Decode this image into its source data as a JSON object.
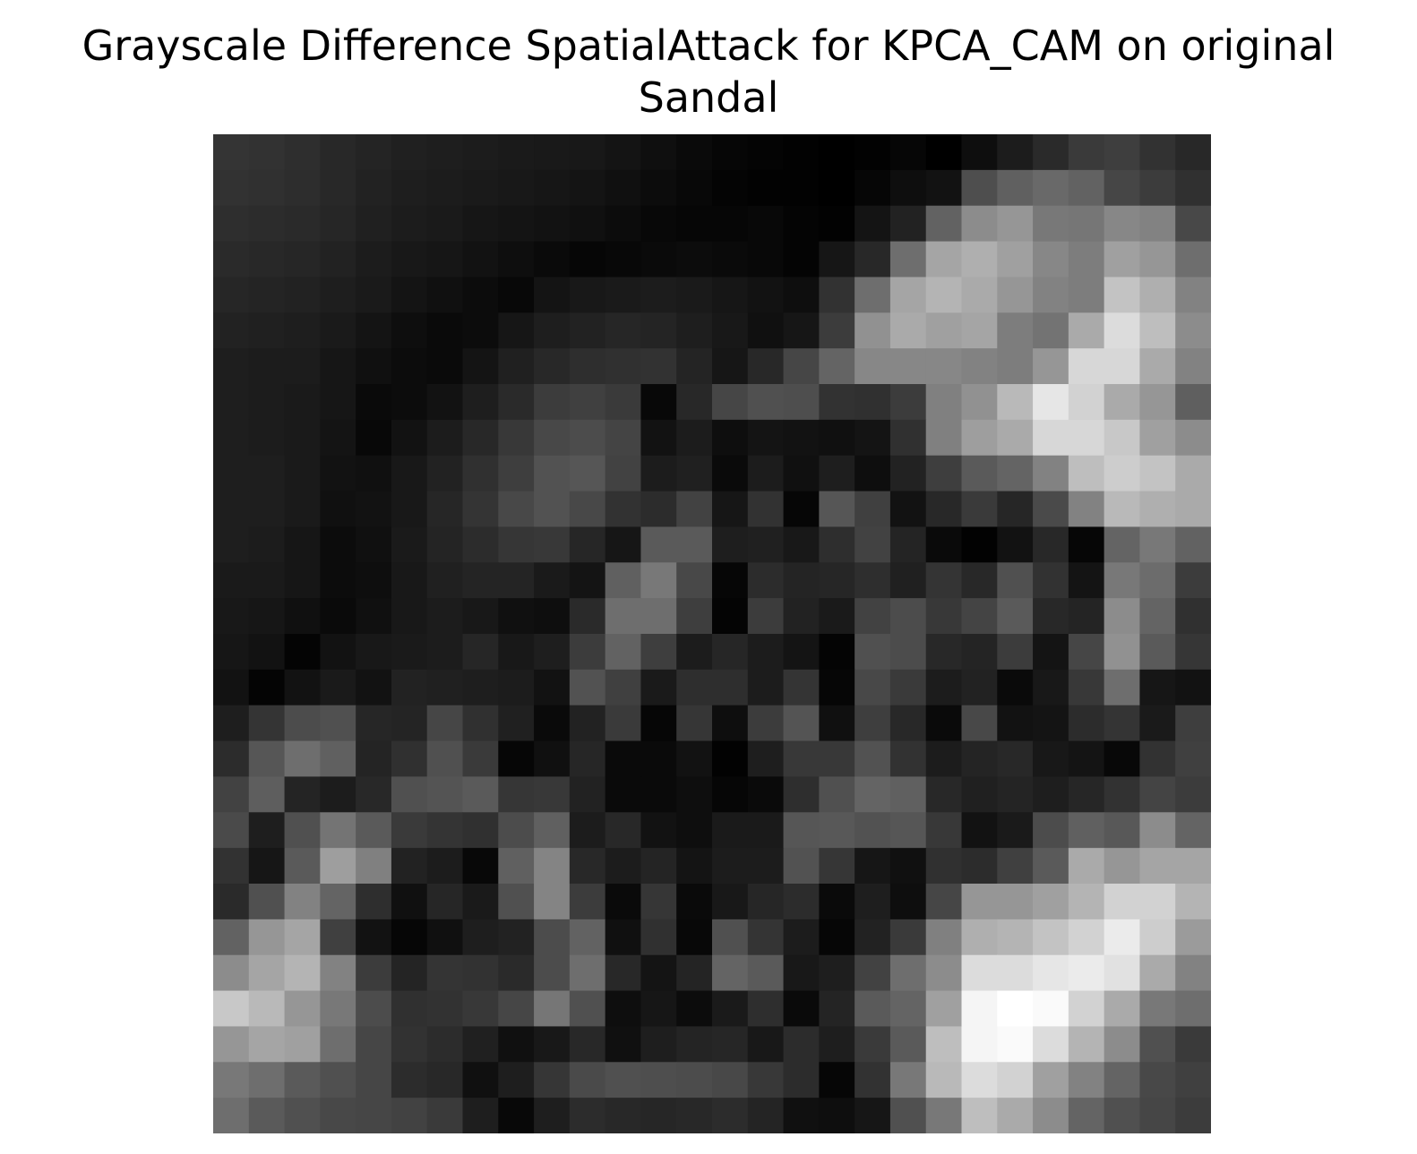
{
  "chart_data": {
    "type": "heatmap",
    "title_line1": "Grayscale Difference SpatialAttack for KPCA_CAM on original",
    "title_line2": "Sandal",
    "colormap": "gray",
    "axis_visible": false,
    "value_range": [
      0,
      255
    ],
    "rows": 28,
    "cols": 28,
    "values": [
      [
        52,
        50,
        46,
        40,
        36,
        32,
        30,
        28,
        26,
        25,
        24,
        20,
        15,
        10,
        6,
        4,
        2,
        0,
        2,
        6,
        0,
        14,
        28,
        42,
        58,
        62,
        50,
        40
      ],
      [
        50,
        48,
        45,
        40,
        34,
        30,
        28,
        26,
        24,
        22,
        20,
        16,
        12,
        8,
        4,
        2,
        2,
        0,
        6,
        14,
        18,
        78,
        96,
        105,
        98,
        70,
        60,
        48
      ],
      [
        46,
        44,
        42,
        38,
        32,
        28,
        26,
        22,
        20,
        18,
        16,
        12,
        8,
        6,
        6,
        8,
        4,
        2,
        20,
        34,
        98,
        140,
        150,
        120,
        118,
        135,
        130,
        72
      ],
      [
        42,
        40,
        38,
        34,
        28,
        24,
        22,
        18,
        14,
        10,
        6,
        8,
        10,
        12,
        10,
        8,
        4,
        22,
        40,
        110,
        165,
        175,
        160,
        135,
        125,
        160,
        150,
        110
      ],
      [
        38,
        36,
        34,
        30,
        26,
        20,
        16,
        12,
        8,
        20,
        24,
        26,
        28,
        26,
        22,
        18,
        14,
        50,
        110,
        165,
        180,
        170,
        150,
        130,
        125,
        195,
        175,
        130
      ],
      [
        34,
        32,
        30,
        26,
        20,
        14,
        10,
        12,
        22,
        30,
        34,
        38,
        36,
        30,
        24,
        16,
        22,
        60,
        145,
        170,
        160,
        165,
        125,
        115,
        170,
        220,
        190,
        140
      ],
      [
        30,
        28,
        28,
        22,
        16,
        12,
        10,
        20,
        32,
        40,
        46,
        48,
        50,
        36,
        22,
        40,
        70,
        100,
        135,
        135,
        135,
        130,
        125,
        150,
        215,
        215,
        170,
        130
      ],
      [
        30,
        28,
        26,
        22,
        10,
        12,
        18,
        30,
        42,
        60,
        64,
        58,
        8,
        40,
        70,
        80,
        78,
        50,
        48,
        60,
        128,
        145,
        185,
        230,
        210,
        170,
        150,
        95
      ],
      [
        30,
        28,
        26,
        20,
        8,
        18,
        28,
        40,
        56,
        72,
        76,
        68,
        18,
        28,
        14,
        20,
        18,
        16,
        20,
        48,
        128,
        158,
        170,
        215,
        215,
        200,
        160,
        140
      ],
      [
        30,
        30,
        26,
        18,
        16,
        24,
        34,
        48,
        62,
        82,
        86,
        66,
        28,
        32,
        10,
        28,
        16,
        30,
        14,
        34,
        62,
        90,
        100,
        130,
        190,
        205,
        195,
        170
      ],
      [
        30,
        30,
        26,
        16,
        18,
        24,
        38,
        52,
        72,
        82,
        72,
        50,
        44,
        66,
        22,
        50,
        6,
        86,
        64,
        18,
        40,
        58,
        38,
        74,
        130,
        185,
        175,
        170
      ],
      [
        30,
        28,
        22,
        12,
        16,
        26,
        36,
        44,
        54,
        56,
        38,
        22,
        90,
        90,
        30,
        32,
        24,
        46,
        66,
        36,
        10,
        2,
        18,
        40,
        6,
        100,
        120,
        98
      ],
      [
        26,
        26,
        22,
        12,
        14,
        24,
        32,
        36,
        36,
        26,
        20,
        96,
        120,
        72,
        6,
        44,
        36,
        38,
        46,
        32,
        52,
        40,
        80,
        50,
        20,
        120,
        108,
        60
      ],
      [
        24,
        22,
        16,
        10,
        16,
        24,
        28,
        24,
        16,
        14,
        42,
        110,
        110,
        62,
        4,
        60,
        34,
        26,
        66,
        76,
        56,
        68,
        90,
        40,
        36,
        140,
        100,
        48
      ],
      [
        22,
        18,
        4,
        18,
        24,
        26,
        28,
        38,
        24,
        30,
        60,
        98,
        62,
        28,
        38,
        28,
        20,
        4,
        80,
        76,
        40,
        36,
        60,
        20,
        70,
        145,
        90,
        54
      ],
      [
        18,
        4,
        18,
        26,
        18,
        34,
        32,
        30,
        28,
        18,
        82,
        64,
        26,
        46,
        46,
        28,
        52,
        6,
        72,
        58,
        28,
        34,
        10,
        24,
        56,
        110,
        22,
        18
      ],
      [
        30,
        52,
        76,
        80,
        38,
        36,
        70,
        48,
        32,
        10,
        34,
        58,
        6,
        54,
        14,
        60,
        84,
        16,
        62,
        40,
        10,
        72,
        18,
        20,
        44,
        52,
        26,
        62
      ],
      [
        44,
        86,
        110,
        96,
        36,
        48,
        80,
        58,
        6,
        16,
        38,
        10,
        10,
        18,
        2,
        30,
        56,
        56,
        82,
        50,
        28,
        36,
        40,
        24,
        20,
        8,
        50,
        64
      ],
      [
        66,
        94,
        36,
        28,
        40,
        80,
        84,
        90,
        54,
        56,
        34,
        10,
        10,
        14,
        6,
        10,
        46,
        80,
        100,
        96,
        40,
        32,
        36,
        30,
        38,
        50,
        68,
        60
      ],
      [
        74,
        30,
        80,
        116,
        90,
        58,
        52,
        48,
        76,
        96,
        28,
        40,
        18,
        14,
        26,
        26,
        86,
        88,
        82,
        86,
        56,
        18,
        26,
        76,
        96,
        88,
        140,
        100
      ],
      [
        50,
        22,
        90,
        158,
        128,
        34,
        28,
        8,
        96,
        132,
        40,
        28,
        36,
        20,
        28,
        28,
        82,
        54,
        22,
        16,
        48,
        44,
        64,
        90,
        170,
        150,
        165,
        165
      ],
      [
        42,
        80,
        130,
        100,
        46,
        16,
        38,
        26,
        80,
        132,
        60,
        10,
        54,
        10,
        24,
        38,
        44,
        10,
        30,
        14,
        70,
        150,
        150,
        160,
        180,
        210,
        210,
        180
      ],
      [
        98,
        150,
        165,
        64,
        18,
        6,
        16,
        30,
        34,
        76,
        98,
        16,
        48,
        8,
        80,
        52,
        28,
        6,
        34,
        58,
        128,
        175,
        180,
        195,
        210,
        235,
        205,
        155
      ],
      [
        140,
        165,
        180,
        130,
        60,
        36,
        52,
        50,
        42,
        76,
        110,
        40,
        20,
        36,
        100,
        90,
        24,
        30,
        66,
        110,
        140,
        220,
        220,
        230,
        235,
        225,
        170,
        130
      ],
      [
        200,
        185,
        150,
        120,
        76,
        48,
        50,
        56,
        70,
        118,
        80,
        14,
        22,
        12,
        26,
        46,
        10,
        36,
        90,
        100,
        160,
        245,
        255,
        250,
        210,
        170,
        120,
        110
      ],
      [
        150,
        165,
        160,
        110,
        70,
        50,
        44,
        32,
        16,
        24,
        40,
        16,
        30,
        36,
        38,
        24,
        44,
        30,
        58,
        90,
        190,
        245,
        250,
        220,
        180,
        140,
        80,
        58
      ],
      [
        120,
        110,
        90,
        80,
        70,
        44,
        40,
        16,
        30,
        54,
        74,
        80,
        78,
        76,
        72,
        56,
        44,
        6,
        50,
        120,
        185,
        220,
        210,
        160,
        130,
        100,
        72,
        64
      ],
      [
        110,
        90,
        80,
        72,
        70,
        66,
        58,
        30,
        8,
        30,
        44,
        40,
        38,
        40,
        44,
        36,
        16,
        14,
        22,
        80,
        120,
        190,
        170,
        140,
        100,
        80,
        70,
        60
      ]
    ]
  }
}
